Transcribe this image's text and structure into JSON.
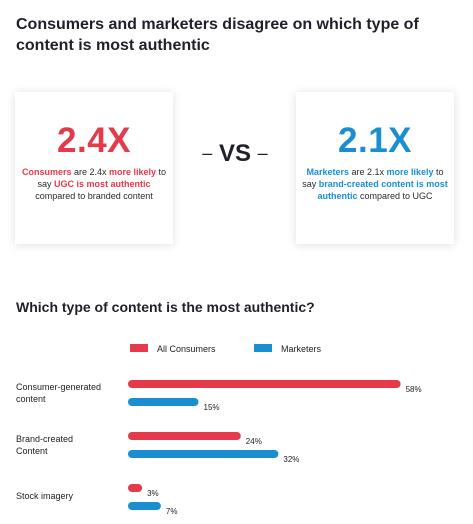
{
  "headline": "Consumers and marketers disagree on which type of content is most authentic",
  "left_card": {
    "stat": "2.4X",
    "text_parts": [
      {
        "text": "Consumers",
        "style": "red"
      },
      {
        "text": " are 2.4x ",
        "style": "plain"
      },
      {
        "text": "more likely",
        "style": "red"
      },
      {
        "text": " to say ",
        "style": "plain"
      },
      {
        "text": "UGC is most authentic",
        "style": "red"
      },
      {
        "text": " compared to branded content",
        "style": "plain"
      }
    ]
  },
  "vs": {
    "dash_left": "–",
    "label": "VS",
    "dash_right": "–"
  },
  "right_card": {
    "stat": "2.1X",
    "text_parts": [
      {
        "text": "Marketers",
        "style": "blue"
      },
      {
        "text": " are 2.1x ",
        "style": "plain"
      },
      {
        "text": "more likely",
        "style": "blue"
      },
      {
        "text": " to say ",
        "style": "plain"
      },
      {
        "text": "brand-created content is most authentic",
        "style": "blue"
      },
      {
        "text": " compared to UGC",
        "style": "plain"
      }
    ]
  },
  "colors": {
    "consumers": "#e63949",
    "marketers": "#1a8fd0"
  },
  "chart_data": {
    "type": "bar",
    "orientation": "horizontal",
    "title": "Which type of content is the most authentic?",
    "categories": [
      [
        "Consumer-generated",
        "content"
      ],
      [
        "Brand-created",
        "Content"
      ],
      [
        "Stock imagery"
      ]
    ],
    "series": [
      {
        "name": "All Consumers",
        "color": "#e63949",
        "values": [
          58,
          24,
          3
        ]
      },
      {
        "name": "Marketers",
        "color": "#1a8fd0",
        "values": [
          15,
          32,
          7
        ]
      }
    ],
    "value_suffix": "%",
    "legend": "top",
    "grid": false
  }
}
